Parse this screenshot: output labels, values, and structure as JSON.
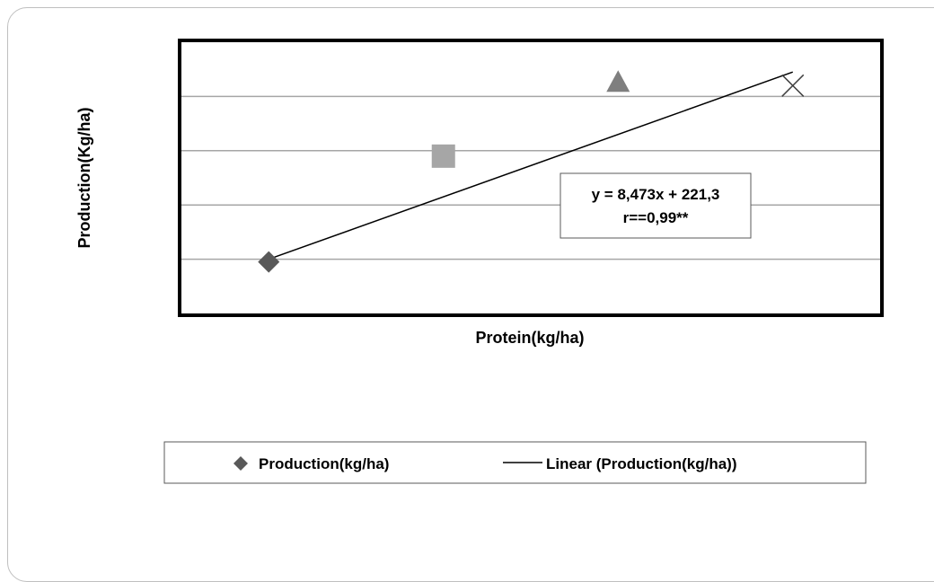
{
  "chart_data": {
    "type": "scatter",
    "title": "",
    "xlabel": "Protein(kg/ha)",
    "ylabel": "Production(Kg/ha)",
    "ylim": [
      0,
      1000
    ],
    "grid": true,
    "legend_position": "bottom",
    "series": [
      {
        "name": "Production(kg/ha)",
        "points": [
          {
            "x": 1,
            "y": 190,
            "marker": "diamond",
            "color": "#595959"
          },
          {
            "x": 2,
            "y": 580,
            "marker": "square",
            "color": "#a6a6a6"
          },
          {
            "x": 3,
            "y": 850,
            "marker": "triangle",
            "color": "#7f7f7f"
          },
          {
            "x": 4,
            "y": 840,
            "marker": "x",
            "color": "#404040"
          }
        ]
      }
    ],
    "trendline": {
      "name": "Linear (Production(kg/ha))",
      "type": "linear",
      "from": {
        "x": 1,
        "y": 200
      },
      "to": {
        "x": 4,
        "y": 890
      },
      "color": "#000000"
    },
    "annotation": {
      "equation": "y = 8,473x + 221,3",
      "correlation": "r==0,99**"
    },
    "legend": {
      "series_label": "Production(kg/ha)",
      "trend_label": "Linear (Production(kg/ha))"
    }
  }
}
